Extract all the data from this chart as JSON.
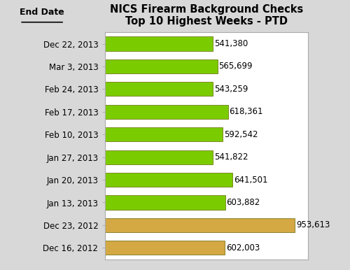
{
  "title_line1": "NICS Firearm Background Checks",
  "title_line2": "Top 10 Highest Weeks - PTD",
  "ylabel_label": "End Date",
  "categories": [
    "Dec 16, 2012",
    "Dec 23, 2012",
    "Jan 13, 2013",
    "Jan 20, 2013",
    "Jan 27, 2013",
    "Feb 10, 2013",
    "Feb 17, 2013",
    "Feb 24, 2013",
    "Mar 3, 2013",
    "Dec 22, 2013"
  ],
  "values": [
    602003,
    953613,
    603882,
    641501,
    541822,
    592542,
    618361,
    543259,
    565699,
    541380
  ],
  "bar_colors": [
    "#D4A843",
    "#D4A843",
    "#7ACC00",
    "#7ACC00",
    "#7ACC00",
    "#7ACC00",
    "#7ACC00",
    "#7ACC00",
    "#7ACC00",
    "#7ACC00"
  ],
  "bar_edge_top": [
    "#C8A060",
    "#C8A060",
    "#99DD44",
    "#99DD44",
    "#99DD44",
    "#99DD44",
    "#99DD44",
    "#99DD44",
    "#99DD44",
    "#99DD44"
  ],
  "bar_edge_bottom": [
    "#9B7520",
    "#9B7520",
    "#4A8800",
    "#4A8800",
    "#4A8800",
    "#4A8800",
    "#4A8800",
    "#4A8800",
    "#4A8800",
    "#4A8800"
  ],
  "value_labels": [
    "602,003",
    "953,613",
    "603,882",
    "641,501",
    "541,822",
    "592,542",
    "618,361",
    "543,259",
    "565,699",
    "541,380"
  ],
  "xlim": [
    0,
    1020000
  ],
  "title_fontsize": 10.5,
  "tick_fontsize": 8.5,
  "value_fontsize": 8.5,
  "background_color": "#FFFFFF",
  "figure_bg_color": "#D8D8D8",
  "border_color": "#AAAAAA"
}
